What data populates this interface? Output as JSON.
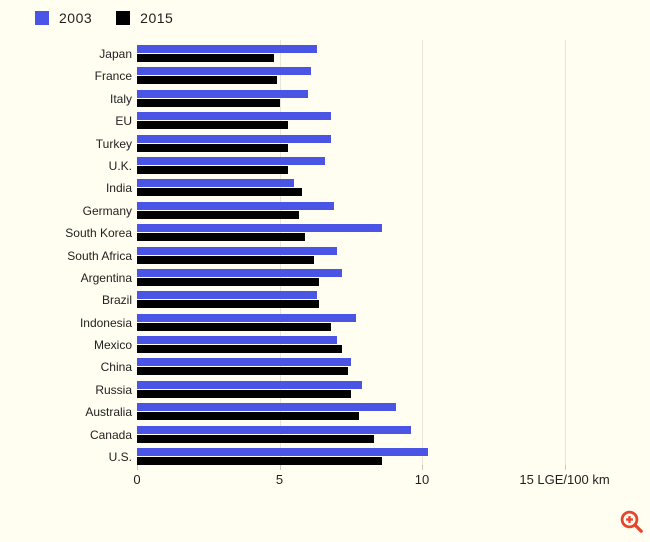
{
  "legend": [
    {
      "label": "2003",
      "color": "#4A55E5"
    },
    {
      "label": "2015",
      "color": "#000000"
    }
  ],
  "chart_data": {
    "type": "bar",
    "orientation": "horizontal",
    "title": "",
    "categories": [
      "Japan",
      "France",
      "Italy",
      "EU",
      "Turkey",
      "U.K.",
      "India",
      "Germany",
      "South Korea",
      "South Africa",
      "Argentina",
      "Brazil",
      "Indonesia",
      "Mexico",
      "China",
      "Russia",
      "Australia",
      "Canada",
      "U.S."
    ],
    "series": [
      {
        "name": "2003",
        "color": "#4A55E5",
        "values": [
          6.3,
          6.1,
          6.0,
          6.8,
          6.8,
          6.6,
          5.5,
          6.9,
          8.6,
          7.0,
          7.2,
          6.3,
          7.7,
          7.0,
          7.5,
          7.9,
          9.1,
          9.6,
          10.2
        ]
      },
      {
        "name": "2015",
        "color": "#000000",
        "values": [
          4.8,
          4.9,
          5.0,
          5.3,
          5.3,
          5.3,
          5.8,
          5.7,
          5.9,
          6.2,
          6.4,
          6.4,
          6.8,
          7.2,
          7.4,
          7.5,
          7.8,
          8.3,
          8.6
        ]
      }
    ],
    "xlabel": "LGE/100 km",
    "ylabel": "",
    "xlim": [
      0,
      15
    ],
    "xticks": [
      {
        "value": 0,
        "label": "0"
      },
      {
        "value": 5,
        "label": "5"
      },
      {
        "value": 10,
        "label": "10"
      },
      {
        "value": 15,
        "label": "15 LGE/100 km"
      }
    ],
    "gridlines_at": [
      5,
      10,
      15
    ],
    "grid": true,
    "legend_position": "top-left",
    "background_color": "#FFFEF0"
  },
  "icons": {
    "zoom_in": {
      "name": "zoom-in-icon",
      "color": "#E8432D"
    }
  }
}
